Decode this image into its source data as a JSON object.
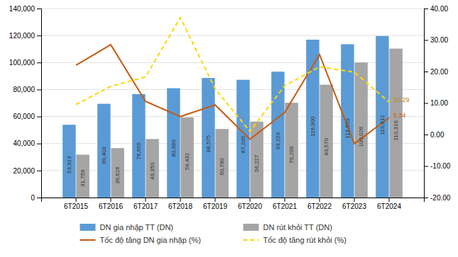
{
  "chart_data": {
    "type": "bar",
    "categories": [
      "6T2015",
      "6T2016",
      "6T2017",
      "6T2018",
      "6T2019",
      "6T2020",
      "6T2021",
      "6T2022",
      "6T2023",
      "6T2024"
    ],
    "series": [
      {
        "name": "DN gia nhập TT (DN)",
        "type": "bar",
        "color": "#5B9BD5",
        "values": [
          53913,
          69403,
          76655,
          80980,
          88575,
          87205,
          93223,
          116900,
          113550,
          119612
        ],
        "value_labels": [
          "53,913",
          "69,403",
          "76,655",
          "80,980",
          "88,575",
          "87,205",
          "93,223",
          "116,900",
          "113,550",
          "119,612"
        ]
      },
      {
        "name": "DN rút khỏi TT (DN)",
        "type": "bar",
        "color": "#A5A5A5",
        "values": [
          31759,
          36626,
          43350,
          59432,
          50780,
          56227,
          70209,
          83570,
          100026,
          110316
        ],
        "value_labels": [
          "31,759",
          "36,626",
          "43,350",
          "59,432",
          "50,780",
          "56,227",
          "70,209",
          "83,570",
          "100,026",
          "110,316"
        ]
      },
      {
        "name": "Tốc độ tăng DN gia nhập (%)",
        "type": "line",
        "axis": "y2",
        "color": "#C55A11",
        "line_style": "solid",
        "values": [
          22.0,
          28.5,
          10.5,
          5.7,
          9.4,
          -1.5,
          7.0,
          25.4,
          -2.9,
          5.34
        ]
      },
      {
        "name": "Tốc độ tăng rút khỏi (%)",
        "type": "line",
        "axis": "y2",
        "color": "#FFD700",
        "line_style": "dashed",
        "values": [
          9.5,
          15.3,
          18.3,
          37.1,
          14.5,
          1.0,
          15.5,
          21.5,
          19.8,
          10.29
        ]
      }
    ],
    "ylim": [
      0,
      140000
    ],
    "yticks": [
      0,
      {
        "value": 20000,
        "label": "20,000"
      },
      {
        "value": 40000,
        "label": "40,000"
      },
      {
        "value": 60000,
        "label": "60,000"
      },
      {
        "value": 80000,
        "label": "80,000"
      },
      {
        "value": 100000,
        "label": "100,000"
      },
      {
        "value": 120000,
        "label": "120,000"
      },
      {
        "value": 140000,
        "label": "140,000"
      }
    ],
    "y2lim": [
      -20,
      40
    ],
    "y2ticks": [
      {
        "value": -20,
        "label": "-20.00"
      },
      {
        "value": -10,
        "label": "-10.00"
      },
      {
        "value": 0,
        "label": "0.00"
      },
      {
        "value": 10,
        "label": "10.00"
      },
      {
        "value": 20,
        "label": "20.00"
      },
      {
        "value": 30,
        "label": "30.00"
      },
      {
        "value": 40,
        "label": "40.00"
      }
    ],
    "annotations": [
      {
        "text": "10.29",
        "x": "6T2024",
        "y": 10.29,
        "axis": "y2",
        "color": "#B8860B"
      },
      {
        "text": "5.34",
        "x": "6T2024",
        "y": 5.34,
        "axis": "y2",
        "color": "#C55A11"
      }
    ],
    "data_labels": true,
    "grid": true,
    "legend": "bottom"
  }
}
